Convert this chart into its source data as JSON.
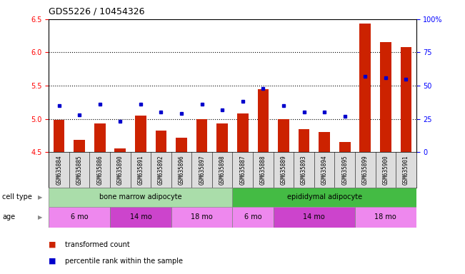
{
  "title": "GDS5226 / 10454326",
  "samples": [
    "GSM635884",
    "GSM635885",
    "GSM635886",
    "GSM635890",
    "GSM635891",
    "GSM635892",
    "GSM635896",
    "GSM635897",
    "GSM635898",
    "GSM635887",
    "GSM635888",
    "GSM635889",
    "GSM635893",
    "GSM635894",
    "GSM635895",
    "GSM635899",
    "GSM635900",
    "GSM635901"
  ],
  "red_values": [
    4.98,
    4.68,
    4.93,
    4.55,
    5.05,
    4.82,
    4.72,
    5.0,
    4.93,
    5.08,
    5.45,
    5.0,
    4.85,
    4.8,
    4.65,
    6.43,
    6.15,
    6.08
  ],
  "blue_values": [
    35,
    28,
    36,
    23,
    36,
    30,
    29,
    36,
    32,
    38,
    48,
    35,
    30,
    30,
    27,
    57,
    56,
    55
  ],
  "ylim_left": [
    4.5,
    6.5
  ],
  "ylim_right": [
    0,
    100
  ],
  "yticks_left": [
    4.5,
    5.0,
    5.5,
    6.0,
    6.5
  ],
  "yticks_right": [
    0,
    25,
    50,
    75,
    100
  ],
  "bar_color": "#cc2200",
  "dot_color": "#0000cc",
  "bar_bottom": 4.5,
  "cell_type_groups": [
    {
      "label": "bone marrow adipocyte",
      "start": 0,
      "end": 9,
      "color": "#aaddaa"
    },
    {
      "label": "epididymal adipocyte",
      "start": 9,
      "end": 18,
      "color": "#44bb44"
    }
  ],
  "age_groups": [
    {
      "label": "6 mo",
      "start": 0,
      "end": 3,
      "color": "#ee88ee"
    },
    {
      "label": "14 mo",
      "start": 3,
      "end": 6,
      "color": "#cc44cc"
    },
    {
      "label": "18 mo",
      "start": 6,
      "end": 9,
      "color": "#ee88ee"
    },
    {
      "label": "6 mo",
      "start": 9,
      "end": 11,
      "color": "#ee88ee"
    },
    {
      "label": "14 mo",
      "start": 11,
      "end": 15,
      "color": "#cc44cc"
    },
    {
      "label": "18 mo",
      "start": 15,
      "end": 18,
      "color": "#ee88ee"
    }
  ],
  "cell_type_label": "cell type",
  "age_label": "age",
  "legend_red": "transformed count",
  "legend_blue": "percentile rank within the sample",
  "right_tick_labels": [
    "0",
    "25",
    "50",
    "75",
    "100%"
  ]
}
